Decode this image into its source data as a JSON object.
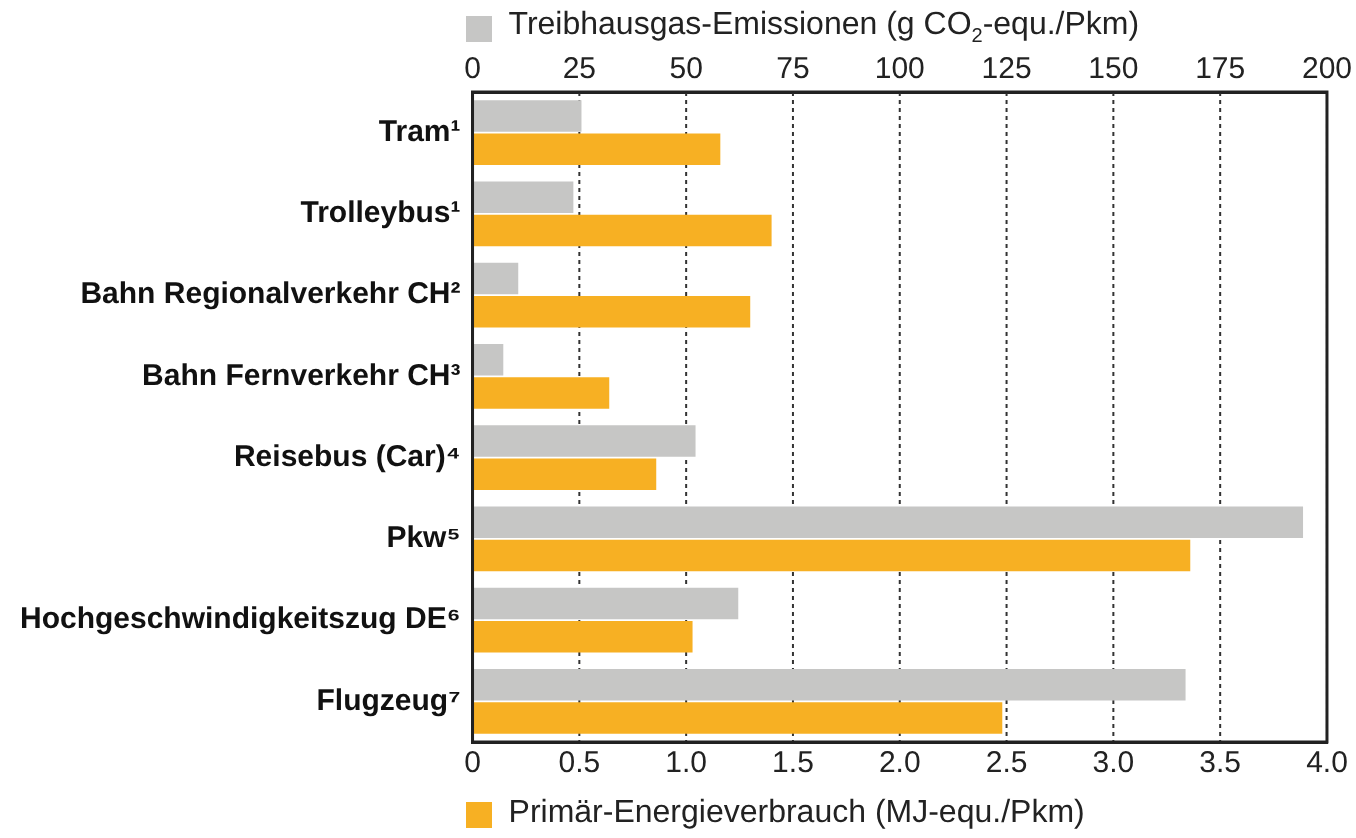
{
  "chart_data": {
    "type": "bar",
    "orientation": "horizontal",
    "categories": [
      "Tram¹",
      "Trolleybus¹",
      "Bahn Regionalverkehr CH²",
      "Bahn Fernverkehr CH³",
      "Reisebus (Car)⁴",
      "Pkw⁵",
      "Hochgeschwindigkeitszug DE⁶",
      "Flugzeug⁷"
    ],
    "series": [
      {
        "color": "#c6c6c5",
        "axis": "x2",
        "values": [
          25.5,
          23.6,
          10.7,
          7.2,
          52.2,
          194.4,
          62.2,
          166.9
        ]
      },
      {
        "color": "#f7b023",
        "values": [
          1.16,
          1.4,
          1.3,
          0.64,
          0.86,
          3.36,
          1.03,
          2.48
        ]
      }
    ],
    "x2label": "Treibhausgas-Emissionen (g CO$_{2}$-equ./Pkm)",
    "xlabel": "Primär-Energieverbrauch (MJ-equ./Pkm)",
    "xlim": [
      0,
      4
    ],
    "xticks": [
      0,
      0.5,
      {
        "value": 1,
        "label": "1.0"
      },
      1.5,
      {
        "value": 2,
        "label": "2.0"
      },
      2.5,
      {
        "value": 3,
        "label": "3.0"
      },
      3.5,
      {
        "value": 4,
        "label": "4.0"
      }
    ],
    "x2lim": [
      0,
      200
    ],
    "x2ticks": [
      0,
      25,
      50,
      75,
      100,
      125,
      150,
      175,
      200
    ],
    "grid": "x"
  }
}
